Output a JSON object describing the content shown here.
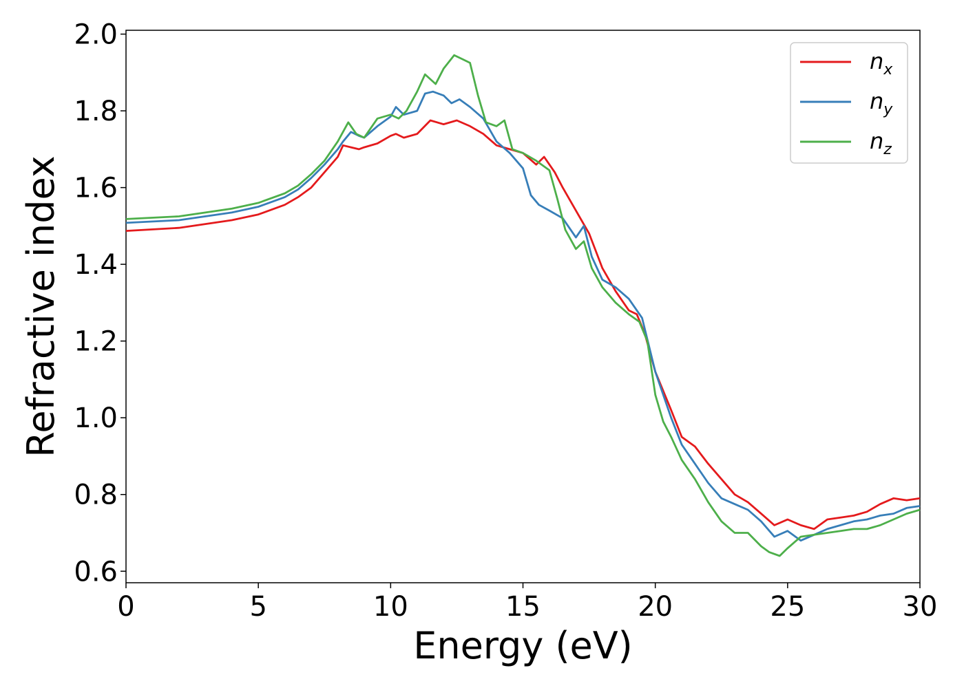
{
  "chart_data": {
    "type": "line",
    "xlabel": "Energy (eV)",
    "ylabel": "Refractive index",
    "xlim": [
      0,
      30
    ],
    "ylim": [
      0.57,
      2.01
    ],
    "xticks": [
      0,
      5,
      10,
      15,
      20,
      25,
      30
    ],
    "xtick_labels": [
      "0",
      "5",
      "10",
      "15",
      "20",
      "25",
      "30"
    ],
    "yticks": [
      0.6,
      0.8,
      1.0,
      1.2,
      1.4,
      1.6,
      1.8,
      2.0
    ],
    "ytick_labels": [
      "0.6",
      "0.8",
      "1.0",
      "1.2",
      "1.4",
      "1.6",
      "1.8",
      "2.0"
    ],
    "grid": false,
    "legend_position": "top-right",
    "series": [
      {
        "name": "n",
        "subscript": "x",
        "color": "#e41a1c",
        "x": [
          0,
          2,
          4,
          5,
          6,
          6.5,
          7,
          7.5,
          8,
          8.2,
          8.5,
          8.8,
          9,
          9.5,
          10,
          10.2,
          10.5,
          11,
          11.5,
          12,
          12.5,
          13,
          13.5,
          14,
          14.5,
          15,
          15.5,
          15.8,
          16.2,
          16.5,
          17,
          17.5,
          18,
          18.5,
          19,
          19.3,
          19.6,
          20,
          20.3,
          20.6,
          21,
          21.5,
          22,
          22.5,
          23,
          23.5,
          24,
          24.5,
          25,
          25.5,
          26,
          26.5,
          27,
          27.5,
          28,
          28.5,
          29,
          29.5,
          30
        ],
        "y": [
          1.487,
          1.495,
          1.515,
          1.53,
          1.555,
          1.575,
          1.6,
          1.64,
          1.68,
          1.71,
          1.705,
          1.7,
          1.705,
          1.715,
          1.735,
          1.74,
          1.73,
          1.74,
          1.775,
          1.765,
          1.775,
          1.76,
          1.74,
          1.71,
          1.7,
          1.69,
          1.66,
          1.68,
          1.64,
          1.6,
          1.54,
          1.48,
          1.39,
          1.33,
          1.28,
          1.27,
          1.22,
          1.12,
          1.07,
          1.02,
          0.95,
          0.925,
          0.88,
          0.84,
          0.8,
          0.78,
          0.75,
          0.72,
          0.735,
          0.72,
          0.71,
          0.735,
          0.74,
          0.745,
          0.755,
          0.775,
          0.79,
          0.785,
          0.79
        ]
      },
      {
        "name": "n",
        "subscript": "y",
        "color": "#377eb8",
        "x": [
          0,
          2,
          4,
          5,
          6,
          6.5,
          7,
          7.5,
          8,
          8.2,
          8.5,
          8.8,
          9,
          9.5,
          10,
          10.2,
          10.5,
          11,
          11.3,
          11.6,
          12,
          12.3,
          12.6,
          13,
          13.5,
          14,
          14.5,
          15,
          15.3,
          15.6,
          16,
          16.5,
          17,
          17.3,
          17.6,
          18,
          18.5,
          19,
          19.5,
          20,
          20.3,
          20.6,
          21,
          21.5,
          22,
          22.5,
          23,
          23.5,
          24,
          24.5,
          25,
          25.5,
          26,
          26.5,
          27,
          27.5,
          28,
          28.5,
          29,
          29.5,
          30
        ],
        "y": [
          1.508,
          1.515,
          1.535,
          1.55,
          1.575,
          1.595,
          1.625,
          1.66,
          1.7,
          1.72,
          1.745,
          1.735,
          1.73,
          1.76,
          1.785,
          1.81,
          1.79,
          1.8,
          1.845,
          1.85,
          1.84,
          1.82,
          1.83,
          1.81,
          1.78,
          1.72,
          1.69,
          1.65,
          1.58,
          1.555,
          1.54,
          1.52,
          1.47,
          1.5,
          1.42,
          1.36,
          1.34,
          1.31,
          1.26,
          1.12,
          1.06,
          1.0,
          0.93,
          0.88,
          0.83,
          0.79,
          0.775,
          0.76,
          0.73,
          0.69,
          0.705,
          0.68,
          0.695,
          0.71,
          0.72,
          0.73,
          0.735,
          0.745,
          0.75,
          0.765,
          0.77
        ]
      },
      {
        "name": "n",
        "subscript": "z",
        "color": "#4daf4a",
        "x": [
          0,
          2,
          4,
          5,
          6,
          6.5,
          7,
          7.5,
          8,
          8.4,
          8.7,
          9,
          9.5,
          10,
          10.3,
          10.6,
          11,
          11.3,
          11.7,
          12,
          12.4,
          12.7,
          13,
          13.3,
          13.6,
          14,
          14.3,
          14.6,
          15,
          15.5,
          16,
          16.3,
          16.6,
          17,
          17.3,
          17.6,
          18,
          18.5,
          19,
          19.4,
          19.7,
          20,
          20.3,
          20.6,
          21,
          21.5,
          22,
          22.5,
          23,
          23.5,
          24,
          24.3,
          24.7,
          25,
          25.5,
          26,
          26.5,
          27,
          27.5,
          28,
          28.5,
          29,
          29.5,
          30
        ],
        "y": [
          1.518,
          1.525,
          1.545,
          1.56,
          1.585,
          1.605,
          1.635,
          1.67,
          1.72,
          1.77,
          1.74,
          1.73,
          1.78,
          1.79,
          1.78,
          1.8,
          1.85,
          1.895,
          1.87,
          1.91,
          1.945,
          1.935,
          1.925,
          1.84,
          1.77,
          1.76,
          1.775,
          1.7,
          1.69,
          1.67,
          1.645,
          1.57,
          1.49,
          1.44,
          1.46,
          1.39,
          1.34,
          1.3,
          1.27,
          1.25,
          1.2,
          1.06,
          0.99,
          0.95,
          0.89,
          0.84,
          0.78,
          0.73,
          0.7,
          0.7,
          0.665,
          0.65,
          0.64,
          0.66,
          0.69,
          0.695,
          0.7,
          0.705,
          0.71,
          0.71,
          0.72,
          0.735,
          0.75,
          0.76
        ]
      }
    ]
  }
}
